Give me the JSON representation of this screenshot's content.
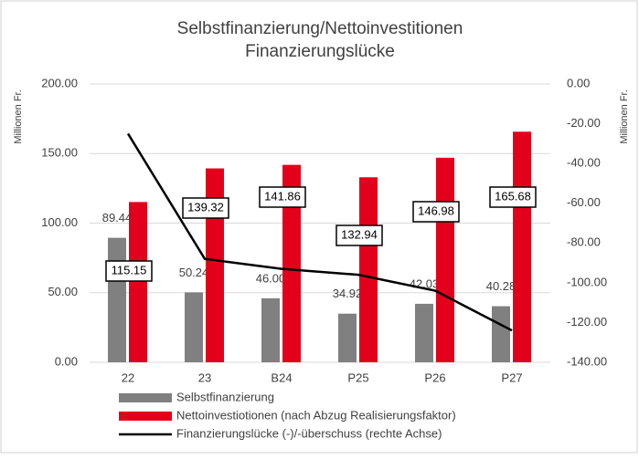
{
  "chart_data": {
    "type": "bar_line",
    "title": [
      "Selbstfinanzierung/Nettoinvestitionen",
      "Finanzierungslücke"
    ],
    "ylabel": "Millionen Fr.",
    "y2label": "Millionen Fr.",
    "categories": [
      "22",
      "23",
      "B24",
      "P25",
      "P26",
      "P27"
    ],
    "series": [
      {
        "name": "Selbstfinanzierung",
        "type": "bar",
        "color": "#808080",
        "values": [
          89.44,
          50.24,
          46.0,
          34.92,
          42.03,
          40.28
        ],
        "value_labels": [
          "89.44",
          "50.24",
          "46.00",
          "34.92",
          "42.03",
          "40.28"
        ]
      },
      {
        "name": "Nettoinvestiotionen (nach Abzug Realisierungsfaktor)",
        "type": "bar",
        "color": "#e3001b",
        "values": [
          115.15,
          139.32,
          141.86,
          132.94,
          146.98,
          165.68
        ]
      },
      {
        "name": "Finanzierungslücke (-)/-überschuss (rechte Achse)",
        "type": "line",
        "axis": "y2",
        "color": "#000000",
        "values": [
          -25,
          -88,
          -93,
          -96,
          -104,
          -124
        ]
      }
    ],
    "ylim": [
      0,
      200
    ],
    "yticks": [
      {
        "value": 0,
        "label": "0.00"
      },
      {
        "value": 50,
        "label": "50.00"
      },
      {
        "value": 100,
        "label": "100.00"
      },
      {
        "value": 150,
        "label": "150.00"
      },
      {
        "value": 200,
        "label": "200.00"
      }
    ],
    "y2lim": [
      -140,
      0
    ],
    "y2ticks": [
      {
        "value": -140,
        "label": "-140.00"
      },
      {
        "value": -120,
        "label": "-120.00"
      },
      {
        "value": -100,
        "label": "-100.00"
      },
      {
        "value": -80,
        "label": "-80.00"
      },
      {
        "value": -60,
        "label": "-60.00"
      },
      {
        "value": -40,
        "label": "-40.00"
      },
      {
        "value": -20,
        "label": "-20.00"
      },
      {
        "value": 0,
        "label": "0.00"
      }
    ],
    "grid": true
  }
}
